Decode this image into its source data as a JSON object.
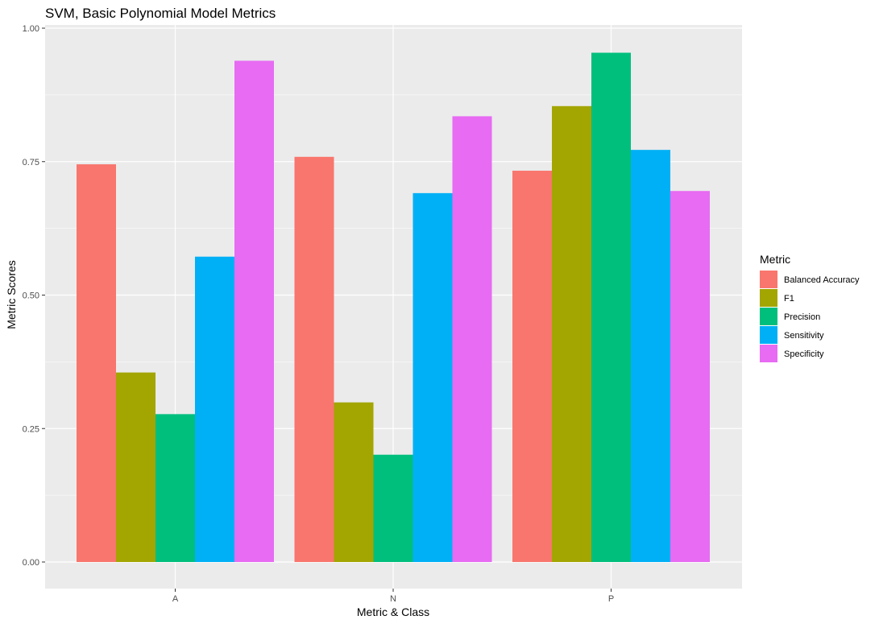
{
  "chart_data": {
    "type": "bar",
    "title": "SVM, Basic Polynomial Model Metrics",
    "xlabel": "Metric & Class",
    "ylabel": "Metric Scores",
    "categories": [
      "A",
      "N",
      "P"
    ],
    "ylim": [
      -0.05,
      1.0
    ],
    "yticks": [
      0.0,
      0.25,
      0.5,
      0.75,
      1.0
    ],
    "ytick_labels": [
      "0.00",
      "0.25",
      "0.50",
      "0.75",
      "1.00"
    ],
    "grid": true,
    "legend": {
      "title": "Metric",
      "placement": "right"
    },
    "series": [
      {
        "name": "Balanced Accuracy",
        "color": "#F8766D",
        "values": [
          0.745,
          0.759,
          0.733
        ]
      },
      {
        "name": "F1",
        "color": "#A3A500",
        "values": [
          0.355,
          0.299,
          0.854
        ]
      },
      {
        "name": "Precision",
        "color": "#00BF7D",
        "values": [
          0.277,
          0.201,
          0.954
        ]
      },
      {
        "name": "Sensitivity",
        "color": "#00B0F6",
        "values": [
          0.572,
          0.691,
          0.772
        ]
      },
      {
        "name": "Specificity",
        "color": "#E76BF3",
        "values": [
          0.939,
          0.835,
          0.695
        ]
      }
    ],
    "colors": {
      "panel": "#EBEBEB",
      "grid": "#FFFFFF"
    }
  }
}
